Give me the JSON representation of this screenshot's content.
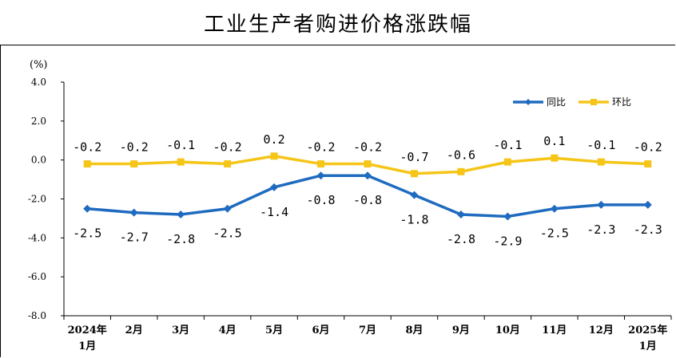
{
  "chart_data": {
    "type": "line",
    "title": "工业生产者购进价格涨跌幅",
    "unit_label": "(%)",
    "ylim": [
      -8.0,
      4.0
    ],
    "yticks": [
      "4.0",
      "2.0",
      "0.0",
      "-2.0",
      "-4.0",
      "-6.0",
      "-8.0"
    ],
    "ytick_values": [
      4,
      2,
      0,
      -2,
      -4,
      -6,
      -8
    ],
    "categories": [
      [
        "2024年",
        "1月"
      ],
      [
        "2月"
      ],
      [
        "3月"
      ],
      [
        "4月"
      ],
      [
        "5月"
      ],
      [
        "6月"
      ],
      [
        "7月"
      ],
      [
        "8月"
      ],
      [
        "9月"
      ],
      [
        "10月"
      ],
      [
        "11月"
      ],
      [
        "12月"
      ],
      [
        "2025年",
        "1月"
      ]
    ],
    "legend_position": "top-right",
    "series": [
      {
        "name": "同比",
        "color": "#1f6bbf",
        "marker": "diamond",
        "values": [
          -2.5,
          -2.7,
          -2.8,
          -2.5,
          -1.4,
          -0.8,
          -0.8,
          -1.8,
          -2.8,
          -2.9,
          -2.5,
          -2.3,
          -2.3
        ],
        "labels": [
          "-2.5",
          "-2.7",
          "-2.8",
          "-2.5",
          "-1.4",
          "-0.8",
          "-0.8",
          "-1.8",
          "-2.8",
          "-2.9",
          "-2.5",
          "-2.3",
          "-2.3"
        ]
      },
      {
        "name": "环比",
        "color": "#f5c518",
        "marker": "square",
        "values": [
          -0.2,
          -0.2,
          -0.1,
          -0.2,
          0.2,
          -0.2,
          -0.2,
          -0.7,
          -0.6,
          -0.1,
          0.1,
          -0.1,
          -0.2
        ],
        "labels": [
          "-0.2",
          "-0.2",
          "-0.1",
          "-0.2",
          "0.2",
          "-0.2",
          "-0.2",
          "-0.7",
          "-0.6",
          "-0.1",
          "0.1",
          "-0.1",
          "-0.2"
        ]
      }
    ]
  }
}
